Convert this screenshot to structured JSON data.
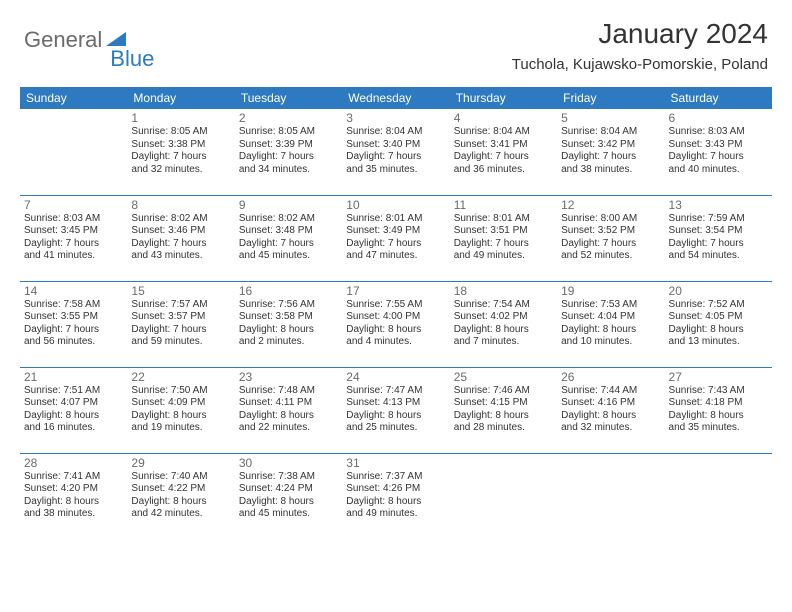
{
  "logo": {
    "text1": "General",
    "text2": "Blue"
  },
  "title": "January 2024",
  "location": "Tuchola, Kujawsko-Pomorskie, Poland",
  "header_color": "#2d7ac0",
  "divider_color": "#2d7ac0",
  "days": [
    "Sunday",
    "Monday",
    "Tuesday",
    "Wednesday",
    "Thursday",
    "Friday",
    "Saturday"
  ],
  "weeks": [
    [
      null,
      {
        "n": "1",
        "sr": "Sunrise: 8:05 AM",
        "ss": "Sunset: 3:38 PM",
        "d1": "Daylight: 7 hours",
        "d2": "and 32 minutes."
      },
      {
        "n": "2",
        "sr": "Sunrise: 8:05 AM",
        "ss": "Sunset: 3:39 PM",
        "d1": "Daylight: 7 hours",
        "d2": "and 34 minutes."
      },
      {
        "n": "3",
        "sr": "Sunrise: 8:04 AM",
        "ss": "Sunset: 3:40 PM",
        "d1": "Daylight: 7 hours",
        "d2": "and 35 minutes."
      },
      {
        "n": "4",
        "sr": "Sunrise: 8:04 AM",
        "ss": "Sunset: 3:41 PM",
        "d1": "Daylight: 7 hours",
        "d2": "and 36 minutes."
      },
      {
        "n": "5",
        "sr": "Sunrise: 8:04 AM",
        "ss": "Sunset: 3:42 PM",
        "d1": "Daylight: 7 hours",
        "d2": "and 38 minutes."
      },
      {
        "n": "6",
        "sr": "Sunrise: 8:03 AM",
        "ss": "Sunset: 3:43 PM",
        "d1": "Daylight: 7 hours",
        "d2": "and 40 minutes."
      }
    ],
    [
      {
        "n": "7",
        "sr": "Sunrise: 8:03 AM",
        "ss": "Sunset: 3:45 PM",
        "d1": "Daylight: 7 hours",
        "d2": "and 41 minutes."
      },
      {
        "n": "8",
        "sr": "Sunrise: 8:02 AM",
        "ss": "Sunset: 3:46 PM",
        "d1": "Daylight: 7 hours",
        "d2": "and 43 minutes."
      },
      {
        "n": "9",
        "sr": "Sunrise: 8:02 AM",
        "ss": "Sunset: 3:48 PM",
        "d1": "Daylight: 7 hours",
        "d2": "and 45 minutes."
      },
      {
        "n": "10",
        "sr": "Sunrise: 8:01 AM",
        "ss": "Sunset: 3:49 PM",
        "d1": "Daylight: 7 hours",
        "d2": "and 47 minutes."
      },
      {
        "n": "11",
        "sr": "Sunrise: 8:01 AM",
        "ss": "Sunset: 3:51 PM",
        "d1": "Daylight: 7 hours",
        "d2": "and 49 minutes."
      },
      {
        "n": "12",
        "sr": "Sunrise: 8:00 AM",
        "ss": "Sunset: 3:52 PM",
        "d1": "Daylight: 7 hours",
        "d2": "and 52 minutes."
      },
      {
        "n": "13",
        "sr": "Sunrise: 7:59 AM",
        "ss": "Sunset: 3:54 PM",
        "d1": "Daylight: 7 hours",
        "d2": "and 54 minutes."
      }
    ],
    [
      {
        "n": "14",
        "sr": "Sunrise: 7:58 AM",
        "ss": "Sunset: 3:55 PM",
        "d1": "Daylight: 7 hours",
        "d2": "and 56 minutes."
      },
      {
        "n": "15",
        "sr": "Sunrise: 7:57 AM",
        "ss": "Sunset: 3:57 PM",
        "d1": "Daylight: 7 hours",
        "d2": "and 59 minutes."
      },
      {
        "n": "16",
        "sr": "Sunrise: 7:56 AM",
        "ss": "Sunset: 3:58 PM",
        "d1": "Daylight: 8 hours",
        "d2": "and 2 minutes."
      },
      {
        "n": "17",
        "sr": "Sunrise: 7:55 AM",
        "ss": "Sunset: 4:00 PM",
        "d1": "Daylight: 8 hours",
        "d2": "and 4 minutes."
      },
      {
        "n": "18",
        "sr": "Sunrise: 7:54 AM",
        "ss": "Sunset: 4:02 PM",
        "d1": "Daylight: 8 hours",
        "d2": "and 7 minutes."
      },
      {
        "n": "19",
        "sr": "Sunrise: 7:53 AM",
        "ss": "Sunset: 4:04 PM",
        "d1": "Daylight: 8 hours",
        "d2": "and 10 minutes."
      },
      {
        "n": "20",
        "sr": "Sunrise: 7:52 AM",
        "ss": "Sunset: 4:05 PM",
        "d1": "Daylight: 8 hours",
        "d2": "and 13 minutes."
      }
    ],
    [
      {
        "n": "21",
        "sr": "Sunrise: 7:51 AM",
        "ss": "Sunset: 4:07 PM",
        "d1": "Daylight: 8 hours",
        "d2": "and 16 minutes."
      },
      {
        "n": "22",
        "sr": "Sunrise: 7:50 AM",
        "ss": "Sunset: 4:09 PM",
        "d1": "Daylight: 8 hours",
        "d2": "and 19 minutes."
      },
      {
        "n": "23",
        "sr": "Sunrise: 7:48 AM",
        "ss": "Sunset: 4:11 PM",
        "d1": "Daylight: 8 hours",
        "d2": "and 22 minutes."
      },
      {
        "n": "24",
        "sr": "Sunrise: 7:47 AM",
        "ss": "Sunset: 4:13 PM",
        "d1": "Daylight: 8 hours",
        "d2": "and 25 minutes."
      },
      {
        "n": "25",
        "sr": "Sunrise: 7:46 AM",
        "ss": "Sunset: 4:15 PM",
        "d1": "Daylight: 8 hours",
        "d2": "and 28 minutes."
      },
      {
        "n": "26",
        "sr": "Sunrise: 7:44 AM",
        "ss": "Sunset: 4:16 PM",
        "d1": "Daylight: 8 hours",
        "d2": "and 32 minutes."
      },
      {
        "n": "27",
        "sr": "Sunrise: 7:43 AM",
        "ss": "Sunset: 4:18 PM",
        "d1": "Daylight: 8 hours",
        "d2": "and 35 minutes."
      }
    ],
    [
      {
        "n": "28",
        "sr": "Sunrise: 7:41 AM",
        "ss": "Sunset: 4:20 PM",
        "d1": "Daylight: 8 hours",
        "d2": "and 38 minutes."
      },
      {
        "n": "29",
        "sr": "Sunrise: 7:40 AM",
        "ss": "Sunset: 4:22 PM",
        "d1": "Daylight: 8 hours",
        "d2": "and 42 minutes."
      },
      {
        "n": "30",
        "sr": "Sunrise: 7:38 AM",
        "ss": "Sunset: 4:24 PM",
        "d1": "Daylight: 8 hours",
        "d2": "and 45 minutes."
      },
      {
        "n": "31",
        "sr": "Sunrise: 7:37 AM",
        "ss": "Sunset: 4:26 PM",
        "d1": "Daylight: 8 hours",
        "d2": "and 49 minutes."
      },
      null,
      null,
      null
    ]
  ]
}
